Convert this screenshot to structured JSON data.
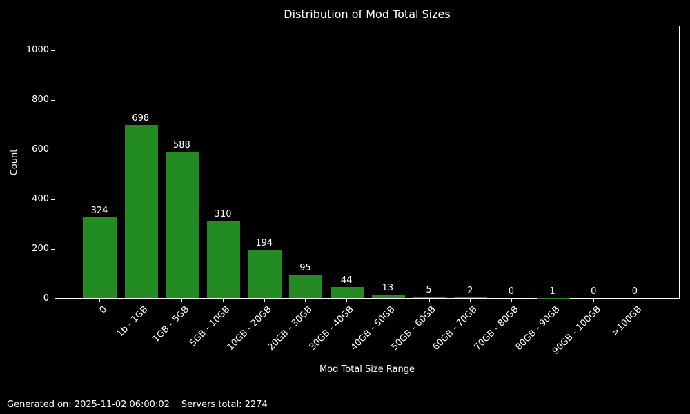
{
  "chart_data": {
    "type": "bar",
    "title": "Distribution of Mod Total Sizes",
    "xlabel": "Mod Total Size Range",
    "ylabel": "Count",
    "categories": [
      "0",
      "1b - 1GB",
      "1GB - 5GB",
      "5GB - 10GB",
      "10GB - 20GB",
      "20GB - 30GB",
      "30GB - 40GB",
      "40GB - 50GB",
      "50GB - 60GB",
      "60GB - 70GB",
      "70GB - 80GB",
      "80GB - 90GB",
      "90GB - 100GB",
      ">100GB"
    ],
    "values": [
      324,
      698,
      588,
      310,
      194,
      95,
      44,
      13,
      5,
      2,
      0,
      1,
      0,
      0
    ],
    "yticks": [
      0,
      200,
      400,
      600,
      800,
      1000
    ],
    "ylim": [
      0,
      1100
    ],
    "bar_color": "#228B22",
    "background_color": "#000000",
    "text_color": "#ffffff",
    "grid": false,
    "legend_position": "none"
  },
  "footer": {
    "generated_label": "Generated on: 2025-11-02 06:00:02",
    "servers_label": "Servers total: 2274"
  }
}
